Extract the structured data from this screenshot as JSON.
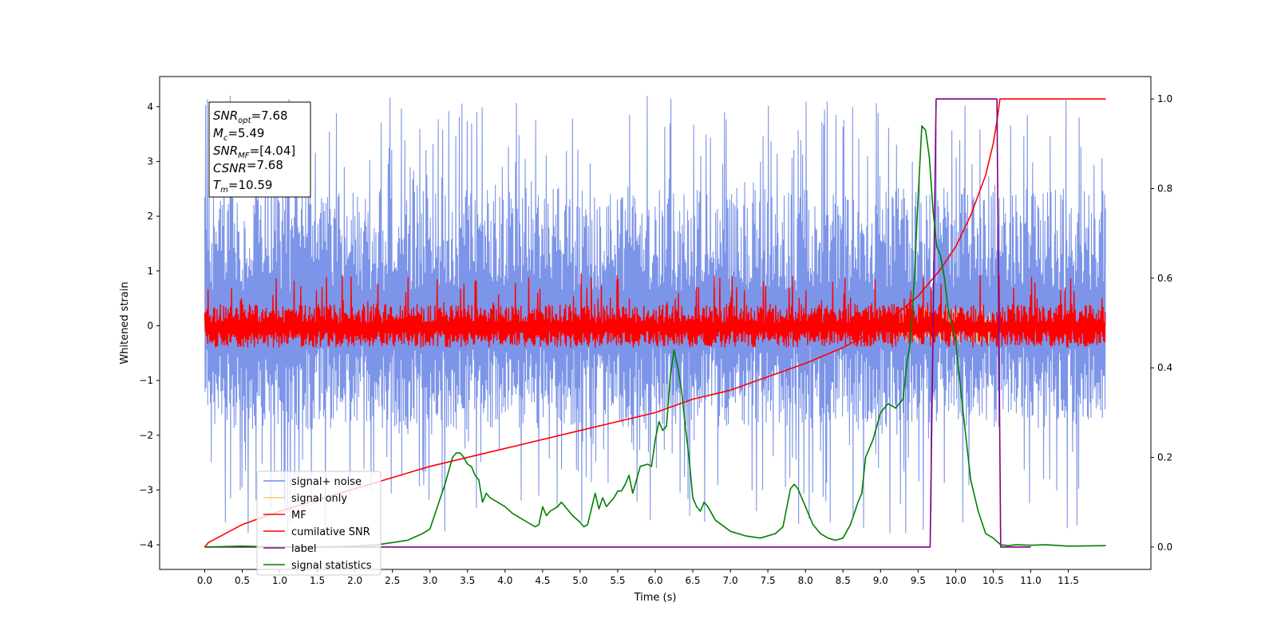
{
  "chart_data": {
    "type": "line",
    "xlabel": "Time (s)",
    "ylabel": "Whitened strain",
    "xlim": [
      -0.6,
      12.6
    ],
    "ylim": [
      -4.45,
      4.55
    ],
    "y2lim": [
      -0.05,
      1.05
    ],
    "xticks": [
      "0.0",
      "0.5",
      "1.0",
      "1.5",
      "2.0",
      "2.5",
      "3.0",
      "3.5",
      "4.0",
      "4.5",
      "5.0",
      "5.5",
      "6.0",
      "6.5",
      "7.0",
      "7.5",
      "8.0",
      "8.5",
      "9.0",
      "9.5",
      "10.0",
      "10.5",
      "11.0",
      "11.5"
    ],
    "yticks": [
      "4",
      "3",
      "2",
      "1",
      "0",
      "−1",
      "−2",
      "−3",
      "−4"
    ],
    "y2ticks": [
      "1.0",
      "0.8",
      "0.6",
      "0.4",
      "0.2",
      "0.0"
    ],
    "legend": {
      "position": "lower-left",
      "items": [
        {
          "label": "signal+ noise",
          "color": "#6f8ae6"
        },
        {
          "label": "signal only",
          "color": "#ffc870"
        },
        {
          "label": "MF",
          "color": "#ff0000"
        },
        {
          "label": "cumilative SNR",
          "color": "#ff0000"
        },
        {
          "label": "label",
          "color": "#800080"
        },
        {
          "label": "signal statistics",
          "color": "#008000"
        }
      ]
    },
    "annotations": [
      {
        "sym": "SNR",
        "sub": "opt",
        "value": "=7.68"
      },
      {
        "sym": "M",
        "sub": "c",
        "value": "=5.49"
      },
      {
        "sym": "SNR",
        "sub": "MF",
        "value": "=[4.04]"
      },
      {
        "sym": "CSNR",
        "sub": "",
        "value": "=7.68"
      },
      {
        "sym": "T",
        "sub": "m",
        "value": "=10.59"
      }
    ],
    "series": [
      {
        "name": "signal+ noise",
        "axis": "left",
        "color": "#6f8ae6",
        "noise_range": [
          -3.8,
          4.2
        ],
        "x_range": [
          0.0,
          12.0
        ]
      },
      {
        "name": "signal only",
        "axis": "left",
        "color": "#ffc870",
        "x": [
          9.2,
          9.6,
          10.0,
          10.3,
          10.55
        ],
        "y": [
          0.1,
          -0.2,
          0.35,
          -0.3,
          0.4
        ]
      },
      {
        "name": "MF",
        "axis": "left",
        "color": "#ff0000",
        "noise_range": [
          -0.45,
          0.95
        ],
        "x_range": [
          0.0,
          12.0
        ]
      },
      {
        "name": "cumilative SNR",
        "axis": "right",
        "color": "#ff0000",
        "x": [
          0.0,
          0.05,
          0.5,
          1.0,
          2.0,
          3.0,
          4.0,
          5.0,
          6.0,
          6.5,
          7.0,
          7.5,
          8.0,
          8.5,
          9.0,
          9.5,
          9.8,
          10.0,
          10.2,
          10.4,
          10.5,
          10.55,
          10.59,
          12.0
        ],
        "y": [
          0.0,
          0.01,
          0.05,
          0.08,
          0.13,
          0.18,
          0.22,
          0.26,
          0.3,
          0.33,
          0.35,
          0.38,
          0.41,
          0.445,
          0.49,
          0.56,
          0.62,
          0.67,
          0.74,
          0.83,
          0.9,
          0.95,
          1.0,
          1.0
        ]
      },
      {
        "name": "label",
        "axis": "right",
        "color": "#800080",
        "x": [
          0.0,
          9.66,
          9.74,
          10.55,
          10.6,
          11.0
        ],
        "y": [
          0.0,
          0.0,
          1.0,
          1.0,
          0.0,
          0.0
        ]
      },
      {
        "name": "signal statistics",
        "axis": "right",
        "color": "#008000",
        "x": [
          0.0,
          0.5,
          1.0,
          1.5,
          2.0,
          2.3,
          2.5,
          2.7,
          2.9,
          3.0,
          3.1,
          3.2,
          3.3,
          3.35,
          3.4,
          3.45,
          3.5,
          3.55,
          3.6,
          3.65,
          3.7,
          3.75,
          3.8,
          3.9,
          4.0,
          4.1,
          4.2,
          4.3,
          4.4,
          4.45,
          4.5,
          4.55,
          4.6,
          4.7,
          4.75,
          4.8,
          4.9,
          5.0,
          5.05,
          5.1,
          5.2,
          5.25,
          5.3,
          5.35,
          5.4,
          5.45,
          5.5,
          5.55,
          5.6,
          5.65,
          5.7,
          5.8,
          5.9,
          5.95,
          6.0,
          6.05,
          6.1,
          6.15,
          6.2,
          6.25,
          6.3,
          6.35,
          6.4,
          6.45,
          6.5,
          6.55,
          6.6,
          6.65,
          6.7,
          6.8,
          7.0,
          7.2,
          7.4,
          7.6,
          7.7,
          7.8,
          7.85,
          7.9,
          8.0,
          8.1,
          8.2,
          8.3,
          8.4,
          8.5,
          8.6,
          8.7,
          8.75,
          8.8,
          8.9,
          9.0,
          9.1,
          9.2,
          9.3,
          9.35,
          9.4,
          9.45,
          9.5,
          9.55,
          9.6,
          9.65,
          9.7,
          9.75,
          9.8,
          9.85,
          9.9,
          10.0,
          10.1,
          10.2,
          10.3,
          10.4,
          10.5,
          10.6,
          10.7,
          10.8,
          11.0,
          11.2,
          11.5,
          12.0
        ],
        "y": [
          0.0,
          0.002,
          0.0,
          0.0,
          0.002,
          0.005,
          0.01,
          0.015,
          0.03,
          0.04,
          0.09,
          0.14,
          0.2,
          0.21,
          0.21,
          0.2,
          0.185,
          0.18,
          0.16,
          0.15,
          0.1,
          0.12,
          0.11,
          0.1,
          0.09,
          0.075,
          0.065,
          0.055,
          0.045,
          0.05,
          0.09,
          0.07,
          0.08,
          0.09,
          0.1,
          0.09,
          0.07,
          0.055,
          0.045,
          0.05,
          0.12,
          0.085,
          0.11,
          0.09,
          0.1,
          0.11,
          0.125,
          0.125,
          0.14,
          0.16,
          0.12,
          0.18,
          0.185,
          0.18,
          0.24,
          0.28,
          0.26,
          0.27,
          0.38,
          0.44,
          0.4,
          0.35,
          0.27,
          0.2,
          0.11,
          0.09,
          0.08,
          0.1,
          0.09,
          0.06,
          0.035,
          0.025,
          0.02,
          0.03,
          0.045,
          0.13,
          0.14,
          0.13,
          0.09,
          0.05,
          0.03,
          0.02,
          0.015,
          0.02,
          0.05,
          0.1,
          0.12,
          0.2,
          0.24,
          0.3,
          0.32,
          0.31,
          0.33,
          0.41,
          0.46,
          0.6,
          0.78,
          0.94,
          0.93,
          0.87,
          0.75,
          0.67,
          0.65,
          0.6,
          0.53,
          0.46,
          0.3,
          0.15,
          0.08,
          0.03,
          0.02,
          0.005,
          0.003,
          0.005,
          0.004,
          0.005,
          0.002,
          0.003
        ]
      }
    ]
  }
}
